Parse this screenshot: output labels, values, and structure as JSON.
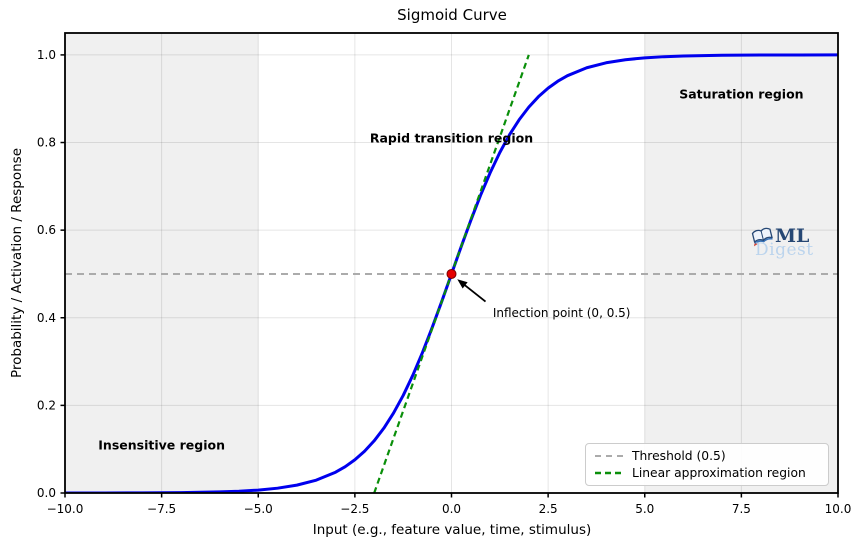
{
  "chart_data": {
    "type": "line",
    "title": "Sigmoid Curve",
    "xlabel": "Input (e.g., feature value, time, stimulus)",
    "ylabel": "Probability / Activation / Response",
    "xlim": [
      -10,
      10
    ],
    "ylim": [
      0,
      1.05
    ],
    "xticks": [
      -10,
      -7.5,
      -5,
      -2.5,
      0,
      2.5,
      5,
      7.5,
      10
    ],
    "xtick_labels": [
      "−10.0",
      "−7.5",
      "−5.0",
      "−2.5",
      "0.0",
      "2.5",
      "5.0",
      "7.5",
      "10.0"
    ],
    "yticks": [
      0,
      0.2,
      0.4,
      0.6,
      0.8,
      1.0
    ],
    "ytick_labels": [
      "0.0",
      "0.2",
      "0.4",
      "0.6",
      "0.8",
      "1.0"
    ],
    "grid": true,
    "grid_color": "rgba(0,0,0,0.10)",
    "background": "#ffffff",
    "spine_color": "#000000",
    "shaded_regions": [
      {
        "name": "insensitive-shade",
        "x0": -10,
        "x1": -5,
        "fill": "rgba(0,0,0,0.06)"
      },
      {
        "name": "saturation-shade",
        "x0": 5,
        "x1": 10,
        "fill": "rgba(0,0,0,0.06)"
      }
    ],
    "series": [
      {
        "name": "sigmoid-curve",
        "z": 2,
        "color": "#0000ee",
        "width": 3,
        "dash": "",
        "x": [
          -10,
          -9,
          -8,
          -7,
          -6,
          -5.5,
          -5,
          -4.5,
          -4,
          -3.5,
          -3,
          -2.75,
          -2.5,
          -2.25,
          -2,
          -1.75,
          -1.5,
          -1.25,
          -1,
          -0.75,
          -0.5,
          -0.25,
          0,
          0.25,
          0.5,
          0.75,
          1,
          1.25,
          1.5,
          1.75,
          2,
          2.25,
          2.5,
          2.75,
          3,
          3.5,
          4,
          4.5,
          5,
          5.5,
          6,
          7,
          8,
          9,
          10
        ],
        "y": [
          5e-05,
          0.00012,
          0.00034,
          0.00091,
          0.00247,
          0.00407,
          0.00669,
          0.01099,
          0.01799,
          0.02931,
          0.04743,
          0.06009,
          0.07586,
          0.09535,
          0.1192,
          0.14805,
          0.18243,
          0.2227,
          0.26894,
          0.32082,
          0.37754,
          0.43782,
          0.5,
          0.56218,
          0.62246,
          0.67918,
          0.73106,
          0.7773,
          0.81757,
          0.85195,
          0.8808,
          0.90465,
          0.92414,
          0.93991,
          0.95257,
          0.97069,
          0.98201,
          0.98901,
          0.99331,
          0.99593,
          0.99753,
          0.99909,
          0.99966,
          0.99988,
          0.99995
        ]
      },
      {
        "name": "threshold-line",
        "z": 1,
        "label": "Threshold (0.5)",
        "color": "#ababab",
        "width": 2,
        "dash": "7 5",
        "x": [
          -10,
          10
        ],
        "y": [
          0.5,
          0.5
        ]
      },
      {
        "name": "linear-approximation-line",
        "z": 3,
        "label": "Linear approximation region",
        "color": "#0a8f0a",
        "width": 2.2,
        "dash": "6 4",
        "x": [
          -2,
          2
        ],
        "y": [
          0,
          1
        ]
      }
    ],
    "inflection_point": {
      "x": 0,
      "y": 0.5,
      "color": "#e60000",
      "edge": "#7a0000",
      "radius": 4.5
    },
    "region_labels": [
      {
        "text": "Insensitive region",
        "x": -7.5,
        "y": 0.11
      },
      {
        "text": "Rapid transition region",
        "x": 0,
        "y": 0.81
      },
      {
        "text": "Saturation region",
        "x": 7.5,
        "y": 0.91
      }
    ],
    "annotation": {
      "text": "Inflection point (0, 0.5)",
      "text_x": 1.07,
      "text_y": 0.41,
      "arrow_from_x": 0.88,
      "arrow_from_y": 0.437,
      "arrow_to_x": 0.15,
      "arrow_to_y": 0.488,
      "color": "#000000"
    },
    "legend": {
      "position": "lower right",
      "entries": [
        {
          "label": "Threshold (0.5)",
          "color": "#ababab",
          "dash": "6 5",
          "width": 2
        },
        {
          "label": "Linear approximation region",
          "color": "#0a8f0a",
          "dash": "6 4",
          "width": 2.5
        }
      ]
    }
  },
  "watermark": {
    "ml": "ML",
    "digest": "Digest",
    "ml_color": "#1c3f6e",
    "digest_color": "#b9d3ed",
    "book_page": "#eef4fc",
    "book_outline": "#1c3f6e",
    "book_base": "#2f6cb5",
    "book_red": "#d03a2b"
  }
}
